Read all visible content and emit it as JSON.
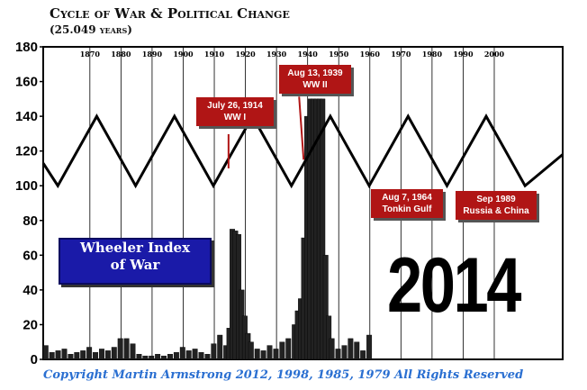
{
  "header": {
    "title": "Cycle of War & Political Change",
    "subtitle": "(25.049 years)"
  },
  "legend_box": {
    "line1": "Wheeler Index",
    "line2": "of War"
  },
  "big_year": "2014",
  "copyright": "Copyright Martin Armstrong 2012, 1998, 1985, 1979 All Rights Reserved",
  "annotations": [
    {
      "line1": "July 26, 1914",
      "line2": "WW I"
    },
    {
      "line1": "Aug 13, 1939",
      "line2": "WW II"
    },
    {
      "line1": "Aug 7, 1964",
      "line2": "Tonkin Gulf"
    },
    {
      "line1": "Sep 1989",
      "line2": "Russia & China"
    }
  ],
  "colors": {
    "annotation_bg": "#b01515",
    "legend_bg": "#1a1aa8",
    "copyright_text": "#2a6fd1",
    "bars": "#222222",
    "cycle_line": "#000000"
  },
  "chart_data": {
    "type": "bar",
    "title": "Cycle of War & Political Change",
    "subtitle": "(25.049 years)",
    "xlabel": "",
    "ylabel": "",
    "xlim": [
      1855,
      2022
    ],
    "ylim": [
      0,
      180
    ],
    "y_ticks": [
      0,
      20,
      40,
      60,
      80,
      100,
      120,
      140,
      160,
      180
    ],
    "x_ticks": [
      1870,
      1880,
      1890,
      1900,
      1910,
      1920,
      1930,
      1940,
      1950,
      1960,
      1970,
      1980,
      1990,
      2000
    ],
    "grid": "vertical lines at decades",
    "series": [
      {
        "name": "Wheeler Index of War",
        "type": "bar",
        "x": [
          1855,
          1857,
          1859,
          1861,
          1863,
          1865,
          1867,
          1869,
          1871,
          1873,
          1875,
          1877,
          1879,
          1881,
          1883,
          1885,
          1887,
          1889,
          1891,
          1893,
          1895,
          1897,
          1899,
          1901,
          1903,
          1905,
          1907,
          1909,
          1911,
          1913,
          1914,
          1915,
          1916,
          1917,
          1918,
          1919,
          1920,
          1921,
          1923,
          1925,
          1927,
          1929,
          1931,
          1933,
          1935,
          1936,
          1937,
          1938,
          1939,
          1940,
          1941,
          1942,
          1943,
          1944,
          1945,
          1946,
          1947,
          1949,
          1951,
          1953,
          1955,
          1957,
          1959
        ],
        "values": [
          8,
          4,
          5,
          6,
          3,
          4,
          5,
          7,
          4,
          6,
          5,
          7,
          12,
          12,
          9,
          3,
          2,
          2,
          3,
          2,
          3,
          4,
          7,
          5,
          6,
          4,
          3,
          9,
          14,
          8,
          18,
          75,
          74,
          72,
          40,
          25,
          15,
          10,
          6,
          5,
          8,
          6,
          10,
          12,
          20,
          28,
          35,
          70,
          140,
          150,
          150,
          150,
          150,
          150,
          60,
          25,
          12,
          6,
          8,
          12,
          10,
          5,
          14
        ]
      },
      {
        "name": "cycle",
        "type": "line",
        "x": [
          1855,
          1859.7,
          1872.2,
          1884.7,
          1897.2,
          1909.7,
          1922.3,
          1934.8,
          1947.3,
          1959.8,
          1972.3,
          1984.8,
          1997.4,
          2009.9,
          2022
        ],
        "values": [
          113,
          100,
          140,
          100,
          140,
          100,
          140,
          100,
          140,
          100,
          140,
          100,
          140,
          100,
          118
        ]
      }
    ],
    "event_markers": [
      {
        "label": "July 26, 1914 WW I",
        "x": 1914,
        "y": 110
      },
      {
        "label": "Aug 13, 1939 WW II",
        "x": 1939,
        "y": 115
      },
      {
        "label": "Aug 7, 1964 Tonkin Gulf",
        "x": 1964,
        "y": 100
      },
      {
        "label": "Sep 1989 Russia & China",
        "x": 1989,
        "y": 100
      }
    ]
  }
}
